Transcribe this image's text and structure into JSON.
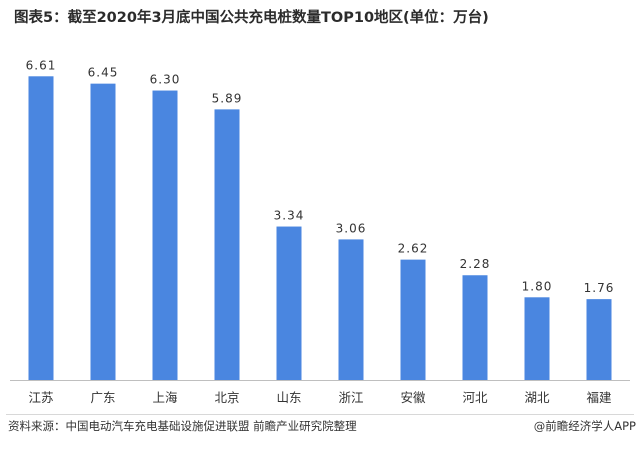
{
  "title": "图表5：截至2020年3月底中国公共充电桩数量TOP10地区(单位：万台)",
  "footer": {
    "source": "资料来源：中国电动汽车充电基础设施促进联盟 前瞻产业研究院整理",
    "credit": "@前瞻经济学人APP"
  },
  "chart_data": {
    "type": "bar",
    "title": "图表5：截至2020年3月底中国公共充电桩数量TOP10地区(单位：万台)",
    "categories": [
      "江苏",
      "广东",
      "上海",
      "北京",
      "山东",
      "浙江",
      "安徽",
      "河北",
      "湖北",
      "福建"
    ],
    "values": [
      6.61,
      6.45,
      6.3,
      5.89,
      3.34,
      3.06,
      2.62,
      2.28,
      1.8,
      1.76
    ],
    "value_labels": [
      "6.61",
      "6.45",
      "6.30",
      "5.89",
      "3.34",
      "3.06",
      "2.62",
      "2.28",
      "1.80",
      "1.76"
    ],
    "ylim": [
      0,
      7.4
    ],
    "grid": false,
    "legend": "none",
    "bar_color": "#4a86e0",
    "axis_color": "#bfbfbf",
    "label_color": "#333333"
  }
}
